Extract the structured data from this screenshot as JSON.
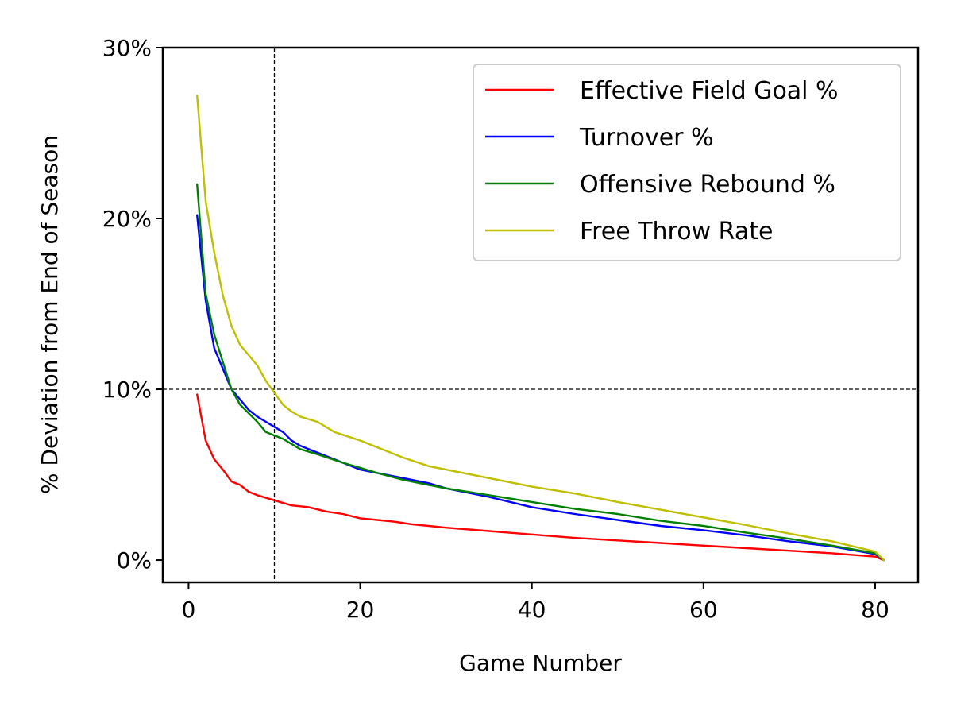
{
  "chart_data": {
    "type": "line",
    "xlabel": "Game Number",
    "ylabel": "% Deviation from End of Season",
    "xlim": [
      -3,
      85
    ],
    "ylim": [
      -1.3,
      30
    ],
    "xticks": [
      0,
      20,
      40,
      60,
      80
    ],
    "yticks": [
      0,
      10,
      20,
      30
    ],
    "ytick_labels": [
      "0%",
      "10%",
      "20%",
      "30%"
    ],
    "grid": false,
    "legend_position": "top-right",
    "reference_lines": [
      {
        "orientation": "horizontal",
        "value": 10,
        "style": "dashed",
        "color": "#000000"
      },
      {
        "orientation": "vertical",
        "value": 10,
        "style": "dashed",
        "color": "#000000"
      }
    ],
    "series": [
      {
        "name": "Effective Field Goal %",
        "color": "#ff0000",
        "points": [
          [
            1,
            9.7
          ],
          [
            2,
            7.0
          ],
          [
            3,
            5.9
          ],
          [
            4,
            5.3
          ],
          [
            5,
            4.6
          ],
          [
            6,
            4.4
          ],
          [
            7,
            4.0
          ],
          [
            8,
            3.8
          ],
          [
            10,
            3.5
          ],
          [
            12,
            3.2
          ],
          [
            14,
            3.1
          ],
          [
            16,
            2.85
          ],
          [
            18,
            2.7
          ],
          [
            20,
            2.45
          ],
          [
            22,
            2.35
          ],
          [
            24,
            2.25
          ],
          [
            26,
            2.1
          ],
          [
            28,
            2.0
          ],
          [
            30,
            1.9
          ],
          [
            35,
            1.7
          ],
          [
            40,
            1.5
          ],
          [
            45,
            1.3
          ],
          [
            50,
            1.15
          ],
          [
            55,
            1.0
          ],
          [
            60,
            0.85
          ],
          [
            65,
            0.7
          ],
          [
            70,
            0.55
          ],
          [
            75,
            0.4
          ],
          [
            80,
            0.2
          ],
          [
            81,
            0.0
          ]
        ]
      },
      {
        "name": "Turnover %",
        "color": "#0000ff",
        "points": [
          [
            1,
            20.2
          ],
          [
            2,
            15.2
          ],
          [
            3,
            12.4
          ],
          [
            4,
            11.2
          ],
          [
            5,
            10.0
          ],
          [
            6,
            9.4
          ],
          [
            7,
            8.8
          ],
          [
            8,
            8.4
          ],
          [
            9,
            8.1
          ],
          [
            10,
            7.8
          ],
          [
            11,
            7.5
          ],
          [
            12,
            7.0
          ],
          [
            13,
            6.7
          ],
          [
            15,
            6.3
          ],
          [
            18,
            5.7
          ],
          [
            20,
            5.3
          ],
          [
            22,
            5.1
          ],
          [
            25,
            4.8
          ],
          [
            28,
            4.5
          ],
          [
            30,
            4.2
          ],
          [
            35,
            3.7
          ],
          [
            40,
            3.1
          ],
          [
            45,
            2.7
          ],
          [
            50,
            2.35
          ],
          [
            55,
            2.0
          ],
          [
            60,
            1.75
          ],
          [
            65,
            1.45
          ],
          [
            70,
            1.1
          ],
          [
            75,
            0.8
          ],
          [
            80,
            0.35
          ],
          [
            81,
            0.0
          ]
        ]
      },
      {
        "name": "Offensive Rebound %",
        "color": "#008000",
        "points": [
          [
            1,
            22.0
          ],
          [
            2,
            15.6
          ],
          [
            3,
            13.2
          ],
          [
            4,
            11.6
          ],
          [
            5,
            10.0
          ],
          [
            6,
            9.1
          ],
          [
            7,
            8.6
          ],
          [
            8,
            8.1
          ],
          [
            9,
            7.5
          ],
          [
            10,
            7.3
          ],
          [
            11,
            7.1
          ],
          [
            12,
            6.8
          ],
          [
            13,
            6.5
          ],
          [
            15,
            6.2
          ],
          [
            18,
            5.7
          ],
          [
            20,
            5.4
          ],
          [
            22,
            5.1
          ],
          [
            25,
            4.7
          ],
          [
            28,
            4.4
          ],
          [
            30,
            4.2
          ],
          [
            35,
            3.8
          ],
          [
            40,
            3.4
          ],
          [
            45,
            3.0
          ],
          [
            50,
            2.7
          ],
          [
            55,
            2.3
          ],
          [
            60,
            2.0
          ],
          [
            65,
            1.6
          ],
          [
            70,
            1.25
          ],
          [
            75,
            0.85
          ],
          [
            80,
            0.4
          ],
          [
            81,
            0.0
          ]
        ]
      },
      {
        "name": "Free Throw Rate",
        "color": "#bfbf00",
        "points": [
          [
            1,
            27.2
          ],
          [
            2,
            21.0
          ],
          [
            3,
            18.0
          ],
          [
            4,
            15.5
          ],
          [
            5,
            13.7
          ],
          [
            6,
            12.6
          ],
          [
            7,
            12.0
          ],
          [
            8,
            11.4
          ],
          [
            9,
            10.5
          ],
          [
            10,
            9.8
          ],
          [
            11,
            9.1
          ],
          [
            12,
            8.7
          ],
          [
            13,
            8.4
          ],
          [
            15,
            8.1
          ],
          [
            17,
            7.5
          ],
          [
            20,
            7.0
          ],
          [
            22,
            6.6
          ],
          [
            25,
            6.0
          ],
          [
            28,
            5.5
          ],
          [
            30,
            5.3
          ],
          [
            35,
            4.8
          ],
          [
            40,
            4.3
          ],
          [
            45,
            3.9
          ],
          [
            50,
            3.4
          ],
          [
            55,
            2.95
          ],
          [
            60,
            2.5
          ],
          [
            65,
            2.05
          ],
          [
            70,
            1.55
          ],
          [
            75,
            1.1
          ],
          [
            80,
            0.5
          ],
          [
            81,
            0.0
          ]
        ]
      }
    ]
  }
}
